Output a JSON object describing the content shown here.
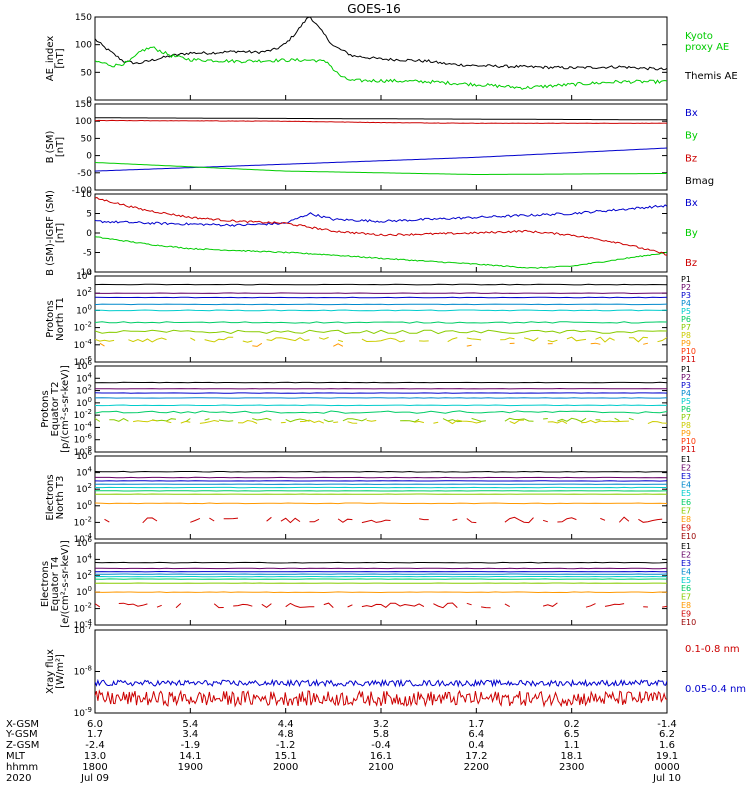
{
  "title": "GOES-16",
  "chart_data": [
    {
      "id": "ae",
      "type": "line",
      "ylabel": [
        "AE_index",
        "[nT]"
      ],
      "ylim": [
        0,
        150
      ],
      "yticks": [
        "0",
        "50",
        "100",
        "150"
      ],
      "legend": [
        {
          "name": "Kyoto proxy AE",
          "lines": [
            "Kyoto",
            "proxy AE"
          ],
          "color": "#00cc00"
        },
        {
          "name": "Themis AE",
          "lines": [
            "Themis AE"
          ],
          "color": "#000000"
        }
      ],
      "series": [
        {
          "name": "Themis AE",
          "color": "#000000",
          "noise": 2.5,
          "points": [
            [
              18.0,
              110
            ],
            [
              18.1,
              95
            ],
            [
              18.3,
              70
            ],
            [
              18.45,
              66
            ],
            [
              18.6,
              72
            ],
            [
              18.8,
              80
            ],
            [
              19.0,
              85
            ],
            [
              19.2,
              85
            ],
            [
              19.5,
              88
            ],
            [
              19.7,
              86
            ],
            [
              19.8,
              88
            ],
            [
              19.9,
              92
            ],
            [
              20.0,
              102
            ],
            [
              20.1,
              120
            ],
            [
              20.2,
              142
            ],
            [
              20.25,
              152
            ],
            [
              20.35,
              130
            ],
            [
              20.5,
              98
            ],
            [
              20.7,
              80
            ],
            [
              21.0,
              74
            ],
            [
              21.3,
              72
            ],
            [
              21.5,
              70
            ],
            [
              21.7,
              65
            ],
            [
              22.0,
              62
            ],
            [
              22.5,
              60
            ],
            [
              23.0,
              58
            ],
            [
              23.5,
              60
            ],
            [
              24.0,
              55
            ]
          ]
        },
        {
          "name": "Kyoto proxy AE",
          "color": "#00cc00",
          "noise": 3,
          "points": [
            [
              18.0,
              70
            ],
            [
              18.2,
              62
            ],
            [
              18.35,
              68
            ],
            [
              18.5,
              90
            ],
            [
              18.6,
              95
            ],
            [
              18.8,
              80
            ],
            [
              19.0,
              73
            ],
            [
              19.5,
              70
            ],
            [
              20.0,
              72
            ],
            [
              20.3,
              72
            ],
            [
              20.45,
              68
            ],
            [
              20.5,
              55
            ],
            [
              20.6,
              40
            ],
            [
              20.7,
              35
            ],
            [
              21.0,
              35
            ],
            [
              21.5,
              33
            ],
            [
              22.0,
              28
            ],
            [
              22.5,
              22
            ],
            [
              23.0,
              28
            ],
            [
              23.5,
              33
            ],
            [
              24.0,
              33
            ]
          ]
        }
      ]
    },
    {
      "id": "bsm",
      "type": "line",
      "ylabel": [
        "B (SM)",
        "[nT]"
      ],
      "ylim": [
        -100,
        150
      ],
      "yticks": [
        "-100",
        "-50",
        "0",
        "50",
        "100",
        "150"
      ],
      "legend": [
        {
          "name": "Bx",
          "lines": [
            "Bx"
          ],
          "color": "#0000cc"
        },
        {
          "name": "By",
          "lines": [
            "By"
          ],
          "color": "#00cc00"
        },
        {
          "name": "Bz",
          "lines": [
            "Bz"
          ],
          "color": "#cc0000"
        },
        {
          "name": "Bmag",
          "lines": [
            "Bmag"
          ],
          "color": "#000000"
        }
      ],
      "series": [
        {
          "name": "Bmag",
          "color": "#000000",
          "noise": 0,
          "points": [
            [
              18,
              110
            ],
            [
              24,
              104
            ]
          ]
        },
        {
          "name": "Bz",
          "color": "#cc0000",
          "noise": 0.5,
          "points": [
            [
              18,
              102
            ],
            [
              20,
              100
            ],
            [
              21,
              96
            ],
            [
              22,
              94
            ],
            [
              24,
              94
            ]
          ]
        },
        {
          "name": "Bx",
          "color": "#0000cc",
          "noise": 0,
          "points": [
            [
              18,
              -45
            ],
            [
              20,
              -25
            ],
            [
              22,
              -5
            ],
            [
              24,
              22
            ]
          ]
        },
        {
          "name": "By",
          "color": "#00cc00",
          "noise": 0,
          "points": [
            [
              18,
              -20
            ],
            [
              20,
              -45
            ],
            [
              22,
              -55
            ],
            [
              24,
              -52
            ]
          ]
        }
      ]
    },
    {
      "id": "bigrf",
      "type": "line",
      "ylabel": [
        "B (SM)-IGRF (SM)",
        "[nT]"
      ],
      "ylim": [
        -10,
        10
      ],
      "yticks": [
        "-10",
        "-5",
        "0",
        "5",
        "10"
      ],
      "legend": [
        {
          "name": "Bx",
          "lines": [
            "Bx"
          ],
          "color": "#0000cc"
        },
        {
          "name": "By",
          "lines": [
            "By"
          ],
          "color": "#00cc00"
        },
        {
          "name": "Bz",
          "lines": [
            "Bz"
          ],
          "color": "#cc0000"
        }
      ],
      "series": [
        {
          "name": "Bx",
          "color": "#0000cc",
          "noise": 0.3,
          "points": [
            [
              18,
              3
            ],
            [
              18.6,
              2.5
            ],
            [
              19.5,
              2
            ],
            [
              20,
              2.5
            ],
            [
              20.25,
              5
            ],
            [
              20.5,
              3.5
            ],
            [
              21,
              3
            ],
            [
              22,
              4
            ],
            [
              23,
              5
            ],
            [
              24,
              7
            ]
          ]
        },
        {
          "name": "By",
          "color": "#00cc00",
          "noise": 0.15,
          "points": [
            [
              18,
              -1
            ],
            [
              18.6,
              -3
            ],
            [
              19,
              -4
            ],
            [
              20,
              -5
            ],
            [
              20.4,
              -5.5
            ],
            [
              21,
              -6.5
            ],
            [
              22,
              -8
            ],
            [
              22.6,
              -9
            ],
            [
              23,
              -8.5
            ],
            [
              24,
              -5
            ]
          ]
        },
        {
          "name": "Bz",
          "color": "#cc0000",
          "noise": 0.25,
          "points": [
            [
              18,
              9
            ],
            [
              18.5,
              6
            ],
            [
              19,
              4
            ],
            [
              19.5,
              3
            ],
            [
              20,
              2.5
            ],
            [
              20.5,
              0.5
            ],
            [
              21,
              -0.5
            ],
            [
              22,
              0
            ],
            [
              22.5,
              0.5
            ],
            [
              23,
              -0.5
            ],
            [
              23.5,
              -2.5
            ],
            [
              24,
              -5.5
            ]
          ]
        }
      ]
    },
    {
      "id": "pn",
      "type": "line",
      "yscale": "log",
      "ylabel": [
        "Protons",
        "North T1"
      ],
      "ylim": [
        -6,
        4
      ],
      "yticks": [
        "10^4",
        "10^2",
        "10^0",
        "10^-2",
        "10^-4",
        "10^-6"
      ],
      "channels": [
        {
          "name": "P1",
          "color": "#000000",
          "level": 3.0,
          "noise": 0.04
        },
        {
          "name": "P2",
          "color": "#660066",
          "level": 2.0,
          "noise": 0.03
        },
        {
          "name": "P3",
          "color": "#0000cc",
          "level": 1.5,
          "noise": 0.03
        },
        {
          "name": "P4",
          "color": "#0088cc",
          "level": 0.7,
          "noise": 0.03
        },
        {
          "name": "P5",
          "color": "#00cccc",
          "level": 0.0,
          "noise": 0.05
        },
        {
          "name": "P6",
          "color": "#00cc66",
          "level": -1.4,
          "noise": 0.08
        },
        {
          "name": "P7",
          "color": "#88cc00",
          "level": -2.5,
          "noise": 0.2
        },
        {
          "name": "P8",
          "color": "#cccc00",
          "level": -3.4,
          "noise": 0.3,
          "gappy": true
        },
        {
          "name": "P9",
          "color": "#ff9900",
          "level": -4.0,
          "noise": 0.2,
          "gappy": true,
          "sparse": true
        },
        {
          "name": "P10",
          "color": "#ff3300",
          "level": -5.0,
          "noise": 0,
          "hidden": true
        },
        {
          "name": "P11",
          "color": "#cc0000",
          "level": -5.5,
          "noise": 0,
          "hidden": true
        }
      ]
    },
    {
      "id": "pe",
      "type": "line",
      "yscale": "log",
      "ylabel": [
        "Protons",
        "Equator T2",
        "[p/(cm²-s-sr-keV)]"
      ],
      "ylim": [
        -8,
        6
      ],
      "yticks": [
        "10^6",
        "10^4",
        "10^2",
        "10^0",
        "10^-2",
        "10^-4",
        "10^-6",
        "10^-8"
      ],
      "channels": [
        {
          "name": "P1",
          "color": "#000000",
          "level": 3.3,
          "noise": 0.04
        },
        {
          "name": "P2",
          "color": "#660066",
          "level": 2.3,
          "noise": 0.03
        },
        {
          "name": "P3",
          "color": "#0000cc",
          "level": 1.6,
          "noise": 0.03
        },
        {
          "name": "P4",
          "color": "#0088cc",
          "level": 0.8,
          "noise": 0.03
        },
        {
          "name": "P5",
          "color": "#00cccc",
          "level": -0.4,
          "noise": 0.05
        },
        {
          "name": "P6",
          "color": "#00cc66",
          "level": -1.5,
          "noise": 0.2
        },
        {
          "name": "P7",
          "color": "#88cc00",
          "level": -2.8,
          "noise": 0.3,
          "gappy": true
        },
        {
          "name": "P8",
          "color": "#cccc00",
          "level": -3.1,
          "noise": 0.3,
          "gappy": true
        },
        {
          "name": "P9",
          "color": "#ff9900",
          "level": -4.5,
          "noise": 0,
          "hidden": true
        },
        {
          "name": "P10",
          "color": "#ff3300",
          "level": -5.5,
          "noise": 0,
          "hidden": true
        },
        {
          "name": "P11",
          "color": "#cc0000",
          "level": -6.5,
          "noise": 0,
          "hidden": true
        }
      ]
    },
    {
      "id": "en",
      "type": "line",
      "yscale": "log",
      "ylabel": [
        "Electrons",
        "North T3"
      ],
      "ylim": [
        -4,
        6
      ],
      "yticks": [
        "10^6",
        "10^4",
        "10^2",
        "10^0",
        "10^-2",
        "10^-4"
      ],
      "channels": [
        {
          "name": "E1",
          "color": "#000000",
          "level": 4.1,
          "noise": 0.04
        },
        {
          "name": "E2",
          "color": "#660066",
          "level": 3.4,
          "noise": 0.03
        },
        {
          "name": "E3",
          "color": "#0000cc",
          "level": 3.0,
          "noise": 0.02
        },
        {
          "name": "E4",
          "color": "#0088cc",
          "level": 2.6,
          "noise": 0.02
        },
        {
          "name": "E5",
          "color": "#00cccc",
          "level": 2.2,
          "noise": 0.02
        },
        {
          "name": "E6",
          "color": "#00cc66",
          "level": 1.8,
          "noise": 0.02
        },
        {
          "name": "E7",
          "color": "#88cc00",
          "level": 1.4,
          "noise": 0.02
        },
        {
          "name": "E8",
          "color": "#ff9900",
          "level": 0.3,
          "noise": 0.04
        },
        {
          "name": "E9",
          "color": "#cc0000",
          "level": -1.7,
          "noise": 0.35,
          "gappy": true
        },
        {
          "name": "E10",
          "color": "#990000",
          "level": -3.0,
          "noise": 0,
          "hidden": true
        }
      ]
    },
    {
      "id": "ee",
      "type": "line",
      "yscale": "log",
      "ylabel": [
        "Electrons",
        "Equator T4",
        "[e/(cm²-s-sr-keV)]"
      ],
      "ylim": [
        -4,
        6
      ],
      "yticks": [
        "10^6",
        "10^4",
        "10^2",
        "10^0",
        "10^-2",
        "10^-4"
      ],
      "channels": [
        {
          "name": "E1",
          "color": "#000000",
          "level": 3.6,
          "noise": 0.04
        },
        {
          "name": "E2",
          "color": "#660066",
          "level": 2.9,
          "noise": 0.03
        },
        {
          "name": "E3",
          "color": "#0000cc",
          "level": 2.5,
          "noise": 0.02
        },
        {
          "name": "E4",
          "color": "#0088cc",
          "level": 2.2,
          "noise": 0.02
        },
        {
          "name": "E5",
          "color": "#00cccc",
          "level": 1.9,
          "noise": 0.02
        },
        {
          "name": "E6",
          "color": "#00cc66",
          "level": 1.6,
          "noise": 0.02
        },
        {
          "name": "E7",
          "color": "#88cc00",
          "level": 1.1,
          "noise": 0.02
        },
        {
          "name": "E8",
          "color": "#ff9900",
          "level": 0.0,
          "noise": 0.04
        },
        {
          "name": "E9",
          "color": "#cc0000",
          "level": -1.6,
          "noise": 0.3,
          "gappy": true
        },
        {
          "name": "E10",
          "color": "#990000",
          "level": -3.0,
          "noise": 0,
          "hidden": true
        }
      ]
    },
    {
      "id": "xray",
      "type": "line",
      "yscale": "log",
      "ylabel": [
        "Xray flux",
        "[W/m²]"
      ],
      "ylim": [
        -9,
        -7
      ],
      "yticks": [
        "10^-7",
        "10^-8",
        "10^-9"
      ],
      "legend": [
        {
          "name": "0.1-0.8 nm",
          "lines": [
            "0.1-0.8 nm"
          ],
          "color": "#cc0000"
        },
        {
          "name": "0.05-0.4 nm",
          "lines": [
            "0.05-0.4 nm"
          ],
          "color": "#0000cc"
        }
      ],
      "series": [
        {
          "name": "0.1-0.8 nm",
          "color": "#cc0000",
          "level": -8.65,
          "noise": 0.18
        },
        {
          "name": "0.05-0.4 nm",
          "color": "#0000cc",
          "level": -8.28,
          "noise": 0.07
        }
      ]
    }
  ],
  "x_axis": {
    "range": [
      18,
      24
    ],
    "columns": [
      {
        "x": 18,
        "values": [
          "6.0",
          "1.7",
          "-2.4",
          "13.0",
          "1800",
          "Jul 09"
        ]
      },
      {
        "x": 19,
        "values": [
          "5.4",
          "3.4",
          "-1.9",
          "14.1",
          "1900",
          ""
        ]
      },
      {
        "x": 20,
        "values": [
          "4.4",
          "4.8",
          "-1.2",
          "15.1",
          "2000",
          ""
        ]
      },
      {
        "x": 21,
        "values": [
          "3.2",
          "5.8",
          "-0.4",
          "16.1",
          "2100",
          ""
        ]
      },
      {
        "x": 22,
        "values": [
          "1.7",
          "6.4",
          "0.4",
          "17.2",
          "2200",
          ""
        ]
      },
      {
        "x": 23,
        "values": [
          "0.2",
          "6.5",
          "1.1",
          "18.1",
          "2300",
          ""
        ]
      },
      {
        "x": 24,
        "values": [
          "-1.4",
          "6.2",
          "1.6",
          "19.1",
          "0000",
          "Jul 10"
        ]
      }
    ],
    "row_labels": [
      "X-GSM",
      "Y-GSM",
      "Z-GSM",
      "MLT",
      "hhmm",
      "2020"
    ]
  }
}
